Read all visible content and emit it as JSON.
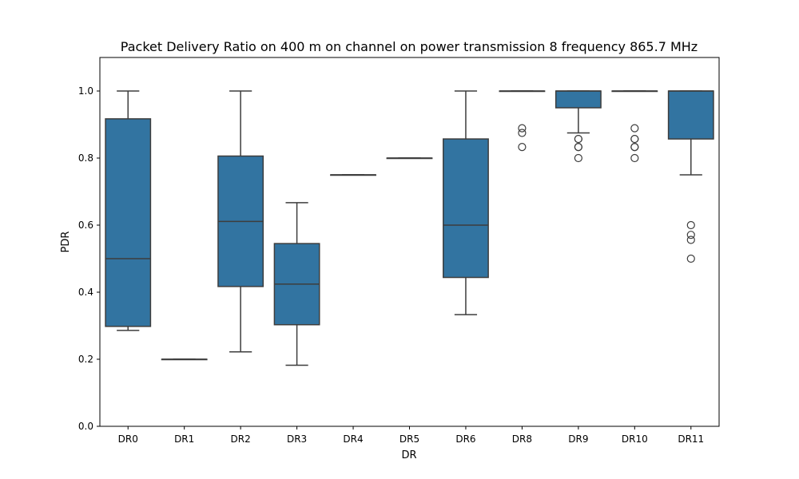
{
  "chart_data": {
    "type": "box",
    "title": "Packet Delivery Ratio on 400 m on channel on power transmission 8 frequency 865.7 MHz",
    "xlabel": "DR",
    "ylabel": "PDR",
    "ylim": [
      0,
      1.1
    ],
    "yticks": [
      "0.0",
      "0.2",
      "0.4",
      "0.6",
      "0.8",
      "1.0"
    ],
    "ytick_values": [
      0,
      0.2,
      0.4,
      0.6,
      0.8,
      1.0
    ],
    "grid": false,
    "box_color": "#3274a1",
    "line_color": "#3d3d3d",
    "categories": [
      "DR0",
      "DR1",
      "DR2",
      "DR3",
      "DR4",
      "DR5",
      "DR6",
      "DR8",
      "DR9",
      "DR10",
      "DR11"
    ],
    "boxes": [
      {
        "category": "DR0",
        "whisker_low": 0.286,
        "q1": 0.298,
        "median": 0.5,
        "q3": 0.917,
        "whisker_high": 1.0,
        "outliers": []
      },
      {
        "category": "DR1",
        "whisker_low": 0.2,
        "q1": 0.2,
        "median": 0.2,
        "q3": 0.2,
        "whisker_high": 0.2,
        "outliers": []
      },
      {
        "category": "DR2",
        "whisker_low": 0.222,
        "q1": 0.417,
        "median": 0.611,
        "q3": 0.806,
        "whisker_high": 1.0,
        "outliers": []
      },
      {
        "category": "DR3",
        "whisker_low": 0.182,
        "q1": 0.303,
        "median": 0.424,
        "q3": 0.545,
        "whisker_high": 0.667,
        "outliers": []
      },
      {
        "category": "DR4",
        "whisker_low": 0.75,
        "q1": 0.75,
        "median": 0.75,
        "q3": 0.75,
        "whisker_high": 0.75,
        "outliers": []
      },
      {
        "category": "DR5",
        "whisker_low": 0.8,
        "q1": 0.8,
        "median": 0.8,
        "q3": 0.8,
        "whisker_high": 0.8,
        "outliers": []
      },
      {
        "category": "DR6",
        "whisker_low": 0.333,
        "q1": 0.444,
        "median": 0.6,
        "q3": 0.857,
        "whisker_high": 1.0,
        "outliers": []
      },
      {
        "category": "DR8",
        "whisker_low": 1.0,
        "q1": 1.0,
        "median": 1.0,
        "q3": 1.0,
        "whisker_high": 1.0,
        "outliers": [
          0.889,
          0.875,
          0.833
        ]
      },
      {
        "category": "DR9",
        "whisker_low": 0.875,
        "q1": 0.95,
        "median": 1.0,
        "q3": 1.0,
        "whisker_high": 1.0,
        "outliers": [
          0.857,
          0.857,
          0.833,
          0.833,
          0.8
        ]
      },
      {
        "category": "DR10",
        "whisker_low": 1.0,
        "q1": 1.0,
        "median": 1.0,
        "q3": 1.0,
        "whisker_high": 1.0,
        "outliers": [
          0.889,
          0.857,
          0.857,
          0.833,
          0.833,
          0.8
        ]
      },
      {
        "category": "DR11",
        "whisker_low": 0.75,
        "q1": 0.857,
        "median": 1.0,
        "q3": 1.0,
        "whisker_high": 1.0,
        "outliers": [
          0.6,
          0.571,
          0.556,
          0.5
        ]
      }
    ]
  }
}
